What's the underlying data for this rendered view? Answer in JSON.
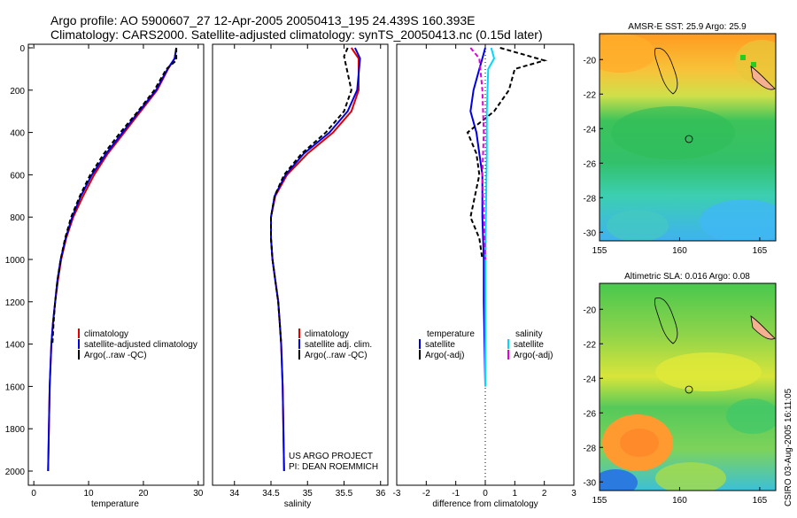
{
  "header": {
    "title_line1": "Argo profile: AO 5900607_27 12-Apr-2005 20050413_195 24.439S 160.393E",
    "title_line2": "Climatology: CARS2000. Satellite-adjusted climatology: synTS_20050413.nc (0.15d later)"
  },
  "credits": {
    "project": "US ARGO PROJECT",
    "pi": "PI: DEAN ROEMMICH",
    "stamp": "CSIRO 03-Aug-2005 16:11:05"
  },
  "colors": {
    "climatology": "#e00000",
    "satellite": "#0000e0",
    "argo": "#000000",
    "salinity_sat": "#00d8ff",
    "salinity_argo": "#e000e0"
  },
  "chart_data": [
    {
      "id": "temperature",
      "type": "line",
      "xlabel": "temperature",
      "ylabel": "",
      "xlim": [
        -1,
        31
      ],
      "ylim": [
        2050,
        0
      ],
      "xticks": [
        0,
        10,
        20,
        30
      ],
      "yticks": [
        0,
        200,
        400,
        600,
        800,
        1000,
        1200,
        1400,
        1600,
        1800,
        2000
      ],
      "legend": [
        "climatology",
        "satellite-adjusted climatology",
        "Argo(..raw -QC)"
      ],
      "series": [
        {
          "name": "climatology",
          "color": "#e00000",
          "dash": "",
          "x": [
            26,
            25.7,
            24.5,
            22.5,
            19.5,
            16.5,
            13.5,
            11,
            9,
            7.2,
            5.9,
            5,
            4.4,
            3.9,
            3.5,
            3.2,
            2.9,
            2.75,
            2.6
          ],
          "y": [
            0,
            50,
            100,
            200,
            300,
            400,
            500,
            600,
            700,
            800,
            900,
            1000,
            1100,
            1200,
            1300,
            1400,
            1600,
            1800,
            2000
          ]
        },
        {
          "name": "satellite-adjusted climatology",
          "color": "#0000e0",
          "dash": "",
          "x": [
            26,
            25.7,
            24.4,
            22.3,
            19.2,
            16.2,
            13.2,
            10.6,
            8.6,
            7,
            5.8,
            4.9,
            4.3,
            3.9,
            3.5,
            3.2,
            2.9,
            2.75,
            2.6
          ],
          "y": [
            0,
            50,
            100,
            200,
            300,
            400,
            500,
            600,
            700,
            800,
            900,
            1000,
            1100,
            1200,
            1300,
            1400,
            1600,
            1800,
            2000
          ]
        },
        {
          "name": "Argo(..raw -QC)",
          "color": "#000000",
          "dash": "5,3",
          "x": [
            26,
            26,
            24.2,
            22,
            19,
            15.8,
            12.8,
            10.3,
            8.4,
            6.8,
            5.7,
            4.9,
            4.3,
            3.9,
            3.6,
            3.4
          ],
          "y": [
            0,
            60,
            100,
            200,
            300,
            400,
            500,
            600,
            700,
            800,
            900,
            1000,
            1100,
            1200,
            1300,
            1400
          ]
        }
      ]
    },
    {
      "id": "salinity",
      "type": "line",
      "xlabel": "salinity",
      "ylabel": "",
      "xlim": [
        33.7,
        36.1
      ],
      "ylim": [
        2050,
        0
      ],
      "xticks": [
        34,
        34.5,
        35,
        35.5,
        36
      ],
      "yticks": [],
      "legend": [
        "climatology",
        "satellite adj. clim.",
        "Argo(..raw -QC)"
      ],
      "series": [
        {
          "name": "climatology",
          "color": "#e00000",
          "dash": "",
          "x": [
            35.6,
            35.7,
            35.7,
            35.6,
            35.35,
            35.0,
            34.72,
            34.56,
            34.5,
            34.5,
            34.52,
            34.56,
            34.6,
            34.62,
            34.64,
            34.66,
            34.68
          ],
          "y": [
            0,
            50,
            200,
            300,
            400,
            500,
            600,
            700,
            800,
            900,
            1000,
            1100,
            1200,
            1300,
            1400,
            1600,
            2000
          ]
        },
        {
          "name": "satellite adj. clim.",
          "color": "#0000e0",
          "dash": "",
          "x": [
            35.65,
            35.72,
            35.68,
            35.55,
            35.3,
            34.95,
            34.7,
            34.55,
            34.5,
            34.5,
            34.52,
            34.56,
            34.6,
            34.62,
            34.64,
            34.66,
            34.68
          ],
          "y": [
            0,
            50,
            200,
            300,
            400,
            500,
            600,
            700,
            800,
            900,
            1000,
            1100,
            1200,
            1300,
            1400,
            1600,
            2000
          ]
        },
        {
          "name": "Argo(..raw -QC)",
          "color": "#000000",
          "dash": "5,3",
          "x": [
            35.55,
            35.5,
            35.6,
            35.5,
            35.25,
            34.92,
            34.68,
            34.55,
            34.5,
            34.5,
            34.52,
            34.56,
            34.6,
            34.62,
            34.64
          ],
          "y": [
            0,
            40,
            200,
            300,
            400,
            500,
            600,
            700,
            800,
            900,
            1000,
            1100,
            1200,
            1300,
            1400
          ]
        }
      ]
    },
    {
      "id": "difference",
      "type": "line",
      "xlabel": "difference from climatology",
      "ylabel": "",
      "xlim": [
        -3,
        3
      ],
      "ylim": [
        2050,
        0
      ],
      "xticks": [
        -3,
        -2,
        -1,
        0,
        1,
        2,
        3
      ],
      "yticks": [],
      "legend": [
        "temperature",
        "satellite",
        "Argo(-adj)",
        "salinity",
        "satellite",
        "Argo(-adj)"
      ],
      "series": [
        {
          "name": "temperature satellite",
          "color": "#0000e0",
          "dash": "",
          "x": [
            0,
            -0.1,
            -0.2,
            -0.4,
            -0.5,
            -0.3,
            -0.2,
            -0.1,
            -0.1,
            -0.05,
            -0.05,
            0
          ],
          "y": [
            0,
            50,
            100,
            200,
            300,
            400,
            500,
            600,
            800,
            1000,
            1200,
            1600
          ]
        },
        {
          "name": "temperature Argo(-adj)",
          "color": "#000000",
          "dash": "5,3",
          "x": [
            0.5,
            2.0,
            1.0,
            0.8,
            0.3,
            -0.6,
            -0.3,
            -0.2,
            -0.5,
            -0.2,
            -0.1
          ],
          "y": [
            0,
            60,
            100,
            200,
            300,
            400,
            500,
            600,
            800,
            900,
            1000
          ]
        },
        {
          "name": "salinity satellite",
          "color": "#00d8ff",
          "dash": "",
          "x": [
            0.2,
            0.3,
            0.1,
            0.05,
            0.05,
            0.02,
            0,
            0,
            0
          ],
          "y": [
            0,
            50,
            100,
            300,
            500,
            800,
            1000,
            1200,
            1600
          ]
        },
        {
          "name": "salinity Argo(-adj)",
          "color": "#e000e0",
          "dash": "5,3",
          "x": [
            -0.5,
            -0.2,
            -0.1,
            -0.05,
            -0.1,
            -0.05,
            0
          ],
          "y": [
            0,
            50,
            200,
            400,
            600,
            800,
            1000
          ]
        }
      ]
    },
    {
      "id": "sst_map",
      "type": "heatmap",
      "title": "AMSR-E SST: 25.9 Argo: 25.9",
      "xlim": [
        155,
        166
      ],
      "ylim": [
        -30.5,
        -18.5
      ],
      "xticks": [
        155,
        160,
        165
      ],
      "yticks": [
        -20,
        -22,
        -24,
        -26,
        -28,
        -30
      ],
      "argo_position": [
        160.393,
        -24.439
      ]
    },
    {
      "id": "sla_map",
      "type": "heatmap",
      "title": "Altimetric SLA: 0.016 Argo: 0.08",
      "xlim": [
        155,
        166
      ],
      "ylim": [
        -30.5,
        -18.5
      ],
      "xticks": [
        155,
        160,
        165
      ],
      "yticks": [
        -20,
        -22,
        -24,
        -26,
        -28,
        -30
      ],
      "argo_position": [
        160.393,
        -24.439
      ]
    }
  ]
}
